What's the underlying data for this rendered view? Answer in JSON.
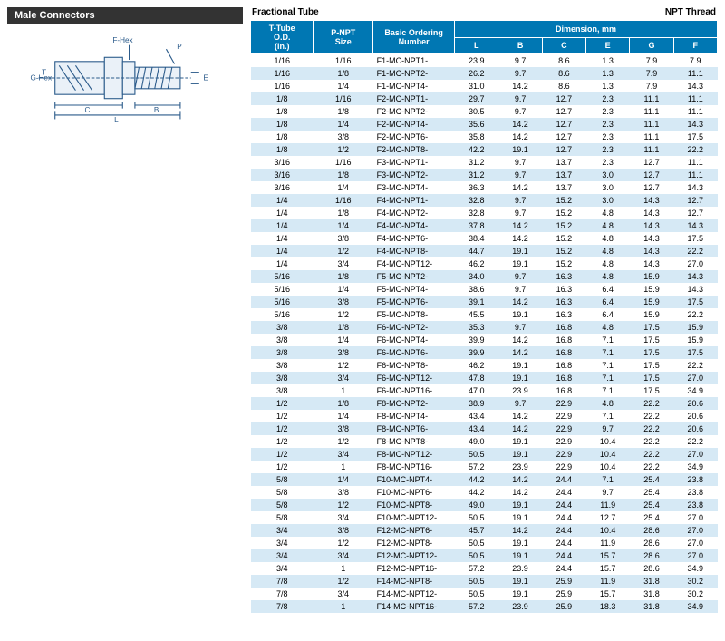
{
  "section_title": "Male Connectors",
  "top_left_label": "Fractional Tube",
  "top_right_label": "NPT Thread",
  "diagram_labels": {
    "fhex": "F-Hex",
    "ghex": "G-Hex",
    "p": "P",
    "t": "T",
    "e": "E",
    "c": "C",
    "b": "B",
    "l": "L"
  },
  "header": {
    "col1": "T-Tube\nO.D.\n(in.)",
    "col2": "P-NPT\nSize",
    "col3": "Basic Ordering\nNumber",
    "dim": "Dimension, mm",
    "sub": [
      "L",
      "B",
      "C",
      "E",
      "G",
      "F"
    ]
  },
  "rows": [
    [
      "1/16",
      "1/16",
      "F1-MC-NPT1-",
      "23.9",
      "9.7",
      "8.6",
      "1.3",
      "7.9",
      "7.9"
    ],
    [
      "1/16",
      "1/8",
      "F1-MC-NPT2-",
      "26.2",
      "9.7",
      "8.6",
      "1.3",
      "7.9",
      "11.1"
    ],
    [
      "1/16",
      "1/4",
      "F1-MC-NPT4-",
      "31.0",
      "14.2",
      "8.6",
      "1.3",
      "7.9",
      "14.3"
    ],
    [
      "1/8",
      "1/16",
      "F2-MC-NPT1-",
      "29.7",
      "9.7",
      "12.7",
      "2.3",
      "11.1",
      "11.1"
    ],
    [
      "1/8",
      "1/8",
      "F2-MC-NPT2-",
      "30.5",
      "9.7",
      "12.7",
      "2.3",
      "11.1",
      "11.1"
    ],
    [
      "1/8",
      "1/4",
      "F2-MC-NPT4-",
      "35.6",
      "14.2",
      "12.7",
      "2.3",
      "11.1",
      "14.3"
    ],
    [
      "1/8",
      "3/8",
      "F2-MC-NPT6-",
      "35.8",
      "14.2",
      "12.7",
      "2.3",
      "11.1",
      "17.5"
    ],
    [
      "1/8",
      "1/2",
      "F2-MC-NPT8-",
      "42.2",
      "19.1",
      "12.7",
      "2.3",
      "11.1",
      "22.2"
    ],
    [
      "3/16",
      "1/16",
      "F3-MC-NPT1-",
      "31.2",
      "9.7",
      "13.7",
      "2.3",
      "12.7",
      "11.1"
    ],
    [
      "3/16",
      "1/8",
      "F3-MC-NPT2-",
      "31.2",
      "9.7",
      "13.7",
      "3.0",
      "12.7",
      "11.1"
    ],
    [
      "3/16",
      "1/4",
      "F3-MC-NPT4-",
      "36.3",
      "14.2",
      "13.7",
      "3.0",
      "12.7",
      "14.3"
    ],
    [
      "1/4",
      "1/16",
      "F4-MC-NPT1-",
      "32.8",
      "9.7",
      "15.2",
      "3.0",
      "14.3",
      "12.7"
    ],
    [
      "1/4",
      "1/8",
      "F4-MC-NPT2-",
      "32.8",
      "9.7",
      "15.2",
      "4.8",
      "14.3",
      "12.7"
    ],
    [
      "1/4",
      "1/4",
      "F4-MC-NPT4-",
      "37.8",
      "14.2",
      "15.2",
      "4.8",
      "14.3",
      "14.3"
    ],
    [
      "1/4",
      "3/8",
      "F4-MC-NPT6-",
      "38.4",
      "14.2",
      "15.2",
      "4.8",
      "14.3",
      "17.5"
    ],
    [
      "1/4",
      "1/2",
      "F4-MC-NPT8-",
      "44.7",
      "19.1",
      "15.2",
      "4.8",
      "14.3",
      "22.2"
    ],
    [
      "1/4",
      "3/4",
      "F4-MC-NPT12-",
      "46.2",
      "19.1",
      "15.2",
      "4.8",
      "14.3",
      "27.0"
    ],
    [
      "5/16",
      "1/8",
      "F5-MC-NPT2-",
      "34.0",
      "9.7",
      "16.3",
      "4.8",
      "15.9",
      "14.3"
    ],
    [
      "5/16",
      "1/4",
      "F5-MC-NPT4-",
      "38.6",
      "9.7",
      "16.3",
      "6.4",
      "15.9",
      "14.3"
    ],
    [
      "5/16",
      "3/8",
      "F5-MC-NPT6-",
      "39.1",
      "14.2",
      "16.3",
      "6.4",
      "15.9",
      "17.5"
    ],
    [
      "5/16",
      "1/2",
      "F5-MC-NPT8-",
      "45.5",
      "19.1",
      "16.3",
      "6.4",
      "15.9",
      "22.2"
    ],
    [
      "3/8",
      "1/8",
      "F6-MC-NPT2-",
      "35.3",
      "9.7",
      "16.8",
      "4.8",
      "17.5",
      "15.9"
    ],
    [
      "3/8",
      "1/4",
      "F6-MC-NPT4-",
      "39.9",
      "14.2",
      "16.8",
      "7.1",
      "17.5",
      "15.9"
    ],
    [
      "3/8",
      "3/8",
      "F6-MC-NPT6-",
      "39.9",
      "14.2",
      "16.8",
      "7.1",
      "17.5",
      "17.5"
    ],
    [
      "3/8",
      "1/2",
      "F6-MC-NPT8-",
      "46.2",
      "19.1",
      "16.8",
      "7.1",
      "17.5",
      "22.2"
    ],
    [
      "3/8",
      "3/4",
      "F6-MC-NPT12-",
      "47.8",
      "19.1",
      "16.8",
      "7.1",
      "17.5",
      "27.0"
    ],
    [
      "3/8",
      "1",
      "F6-MC-NPT16-",
      "47.0",
      "23.9",
      "16.8",
      "7.1",
      "17.5",
      "34.9"
    ],
    [
      "1/2",
      "1/8",
      "F8-MC-NPT2-",
      "38.9",
      "9.7",
      "22.9",
      "4.8",
      "22.2",
      "20.6"
    ],
    [
      "1/2",
      "1/4",
      "F8-MC-NPT4-",
      "43.4",
      "14.2",
      "22.9",
      "7.1",
      "22.2",
      "20.6"
    ],
    [
      "1/2",
      "3/8",
      "F8-MC-NPT6-",
      "43.4",
      "14.2",
      "22.9",
      "9.7",
      "22.2",
      "20.6"
    ],
    [
      "1/2",
      "1/2",
      "F8-MC-NPT8-",
      "49.0",
      "19.1",
      "22.9",
      "10.4",
      "22.2",
      "22.2"
    ],
    [
      "1/2",
      "3/4",
      "F8-MC-NPT12-",
      "50.5",
      "19.1",
      "22.9",
      "10.4",
      "22.2",
      "27.0"
    ],
    [
      "1/2",
      "1",
      "F8-MC-NPT16-",
      "57.2",
      "23.9",
      "22.9",
      "10.4",
      "22.2",
      "34.9"
    ],
    [
      "5/8",
      "1/4",
      "F10-MC-NPT4-",
      "44.2",
      "14.2",
      "24.4",
      "7.1",
      "25.4",
      "23.8"
    ],
    [
      "5/8",
      "3/8",
      "F10-MC-NPT6-",
      "44.2",
      "14.2",
      "24.4",
      "9.7",
      "25.4",
      "23.8"
    ],
    [
      "5/8",
      "1/2",
      "F10-MC-NPT8-",
      "49.0",
      "19.1",
      "24.4",
      "11.9",
      "25.4",
      "23.8"
    ],
    [
      "5/8",
      "3/4",
      "F10-MC-NPT12-",
      "50.5",
      "19.1",
      "24.4",
      "12.7",
      "25.4",
      "27.0"
    ],
    [
      "3/4",
      "3/8",
      "F12-MC-NPT6-",
      "45.7",
      "14.2",
      "24.4",
      "10.4",
      "28.6",
      "27.0"
    ],
    [
      "3/4",
      "1/2",
      "F12-MC-NPT8-",
      "50.5",
      "19.1",
      "24.4",
      "11.9",
      "28.6",
      "27.0"
    ],
    [
      "3/4",
      "3/4",
      "F12-MC-NPT12-",
      "50.5",
      "19.1",
      "24.4",
      "15.7",
      "28.6",
      "27.0"
    ],
    [
      "3/4",
      "1",
      "F12-MC-NPT16-",
      "57.2",
      "23.9",
      "24.4",
      "15.7",
      "28.6",
      "34.9"
    ],
    [
      "7/8",
      "1/2",
      "F14-MC-NPT8-",
      "50.5",
      "19.1",
      "25.9",
      "11.9",
      "31.8",
      "30.2"
    ],
    [
      "7/8",
      "3/4",
      "F14-MC-NPT12-",
      "50.5",
      "19.1",
      "25.9",
      "15.7",
      "31.8",
      "30.2"
    ],
    [
      "7/8",
      "1",
      "F14-MC-NPT16-",
      "57.2",
      "23.9",
      "25.9",
      "18.3",
      "31.8",
      "34.9"
    ]
  ],
  "colors": {
    "header_bg": "#0077b3",
    "header_fg": "#ffffff",
    "section_bg": "#333333",
    "row_even": "#d6e9f5",
    "row_odd": "#ffffff",
    "diagram_stroke": "#2a5a8a"
  }
}
